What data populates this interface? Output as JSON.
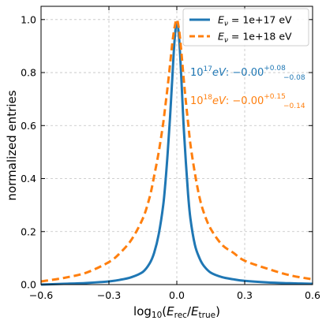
{
  "chart_data": {
    "type": "line",
    "title": "",
    "xlabel": {
      "prefix": "log",
      "sub": "10",
      "open": "(",
      "e1": "E",
      "e1sub": "rec",
      "slash": "/",
      "e2": "E",
      "e2sub": "true",
      "close": ")"
    },
    "ylabel": "normalized entries",
    "xlim": [
      -0.6,
      0.6
    ],
    "ylim": [
      0,
      1.05
    ],
    "xticks": [
      -0.6,
      -0.3,
      0.0,
      0.3,
      0.6
    ],
    "xtick_labels": [
      "−0.6",
      "−0.3",
      "0.0",
      "0.3",
      "0.6"
    ],
    "yticks": [
      0.0,
      0.2,
      0.4,
      0.6,
      0.8,
      1.0
    ],
    "ytick_labels": [
      "0.0",
      "0.2",
      "0.4",
      "0.6",
      "0.8",
      "1.0"
    ],
    "grid": true,
    "legend_position": "top-right",
    "series": [
      {
        "name": "E_ν = 1e+17 eV",
        "legend": {
          "sym": "E",
          "sub": "ν",
          "text": " = 1e+17 eV"
        },
        "color": "#1f77b4",
        "style": "solid",
        "x": [
          -0.6,
          -0.5,
          -0.4,
          -0.3,
          -0.25,
          -0.2,
          -0.15,
          -0.12,
          -0.1,
          -0.08,
          -0.06,
          -0.05,
          -0.04,
          -0.03,
          -0.02,
          -0.01,
          0.0,
          0.01,
          0.02,
          0.03,
          0.04,
          0.05,
          0.06,
          0.08,
          0.1,
          0.12,
          0.15,
          0.2,
          0.25,
          0.3,
          0.4,
          0.5,
          0.6
        ],
        "y": [
          0.0,
          0.003,
          0.006,
          0.012,
          0.018,
          0.028,
          0.048,
          0.08,
          0.12,
          0.19,
          0.3,
          0.39,
          0.5,
          0.63,
          0.78,
          0.92,
          0.99,
          0.93,
          0.78,
          0.6,
          0.46,
          0.34,
          0.25,
          0.15,
          0.1,
          0.07,
          0.045,
          0.028,
          0.02,
          0.014,
          0.008,
          0.005,
          0.003
        ]
      },
      {
        "name": "E_ν = 1e+18 eV",
        "legend": {
          "sym": "E",
          "sub": "ν",
          "text": " = 1e+18 eV"
        },
        "color": "#ff7f0e",
        "style": "dashed",
        "x": [
          -0.6,
          -0.5,
          -0.4,
          -0.3,
          -0.25,
          -0.2,
          -0.15,
          -0.12,
          -0.1,
          -0.08,
          -0.06,
          -0.05,
          -0.04,
          -0.03,
          -0.02,
          -0.01,
          0.0,
          0.01,
          0.02,
          0.03,
          0.04,
          0.05,
          0.06,
          0.08,
          0.1,
          0.12,
          0.15,
          0.2,
          0.25,
          0.3,
          0.4,
          0.5,
          0.6
        ],
        "y": [
          0.012,
          0.025,
          0.045,
          0.085,
          0.12,
          0.17,
          0.25,
          0.33,
          0.41,
          0.5,
          0.61,
          0.68,
          0.75,
          0.83,
          0.91,
          0.97,
          1.0,
          0.96,
          0.88,
          0.78,
          0.69,
          0.61,
          0.53,
          0.42,
          0.33,
          0.27,
          0.21,
          0.15,
          0.12,
          0.09,
          0.06,
          0.035,
          0.02
        ]
      }
    ],
    "annotations": [
      {
        "base": "10",
        "exp": "17",
        "unit": "eV",
        "mid": ": −0.00",
        "sup": "+0.08",
        "sub": "−0.08",
        "color": "#1f77b4"
      },
      {
        "base": "10",
        "exp": "18",
        "unit": "eV",
        "mid": ": −0.00",
        "sup": "+0.15",
        "sub": "−0.14",
        "color": "#ff7f0e"
      }
    ]
  }
}
